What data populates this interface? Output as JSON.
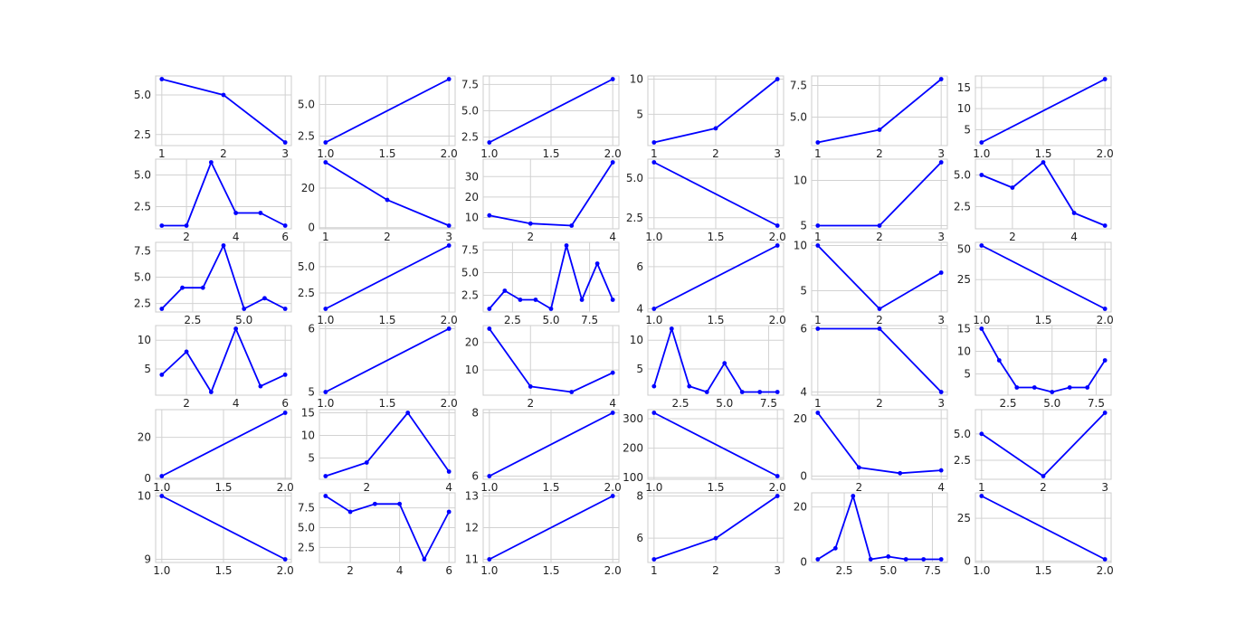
{
  "figure": {
    "style": "whitegrid",
    "grid": true,
    "line_color": "#0000ff",
    "marker": "dot"
  },
  "chart_data": [
    {
      "type": "line",
      "x": [
        1,
        2,
        3
      ],
      "y": [
        6,
        5,
        2
      ],
      "xlim": [
        0.9,
        3.1
      ],
      "ylim": [
        1.8,
        6.2
      ],
      "xticks": [
        1,
        2,
        3
      ],
      "xticklabels": [
        "1",
        "2",
        "3"
      ],
      "yticks": [
        2.5,
        5.0
      ],
      "yticklabels": [
        "2.5",
        "5.0"
      ]
    },
    {
      "type": "line",
      "x": [
        1,
        2
      ],
      "y": [
        2,
        7
      ],
      "xlim": [
        0.95,
        2.05
      ],
      "ylim": [
        1.75,
        7.25
      ],
      "xticks": [
        1.0,
        1.5,
        2.0
      ],
      "xticklabels": [
        "1.0",
        "1.5",
        "2.0"
      ],
      "yticks": [
        2.5,
        5.0
      ],
      "yticklabels": [
        "2.5",
        "5.0"
      ]
    },
    {
      "type": "line",
      "x": [
        1,
        2
      ],
      "y": [
        2,
        8
      ],
      "xlim": [
        0.95,
        2.05
      ],
      "ylim": [
        1.7,
        8.3
      ],
      "xticks": [
        1.0,
        1.5,
        2.0
      ],
      "xticklabels": [
        "1.0",
        "1.5",
        "2.0"
      ],
      "yticks": [
        2.5,
        5.0,
        7.5
      ],
      "yticklabels": [
        "2.5",
        "5.0",
        "7.5"
      ]
    },
    {
      "type": "line",
      "x": [
        1,
        2,
        3
      ],
      "y": [
        1,
        3,
        10
      ],
      "xlim": [
        0.9,
        3.1
      ],
      "ylim": [
        0.55,
        10.45
      ],
      "xticks": [
        1,
        2,
        3
      ],
      "xticklabels": [
        "1",
        "2",
        "3"
      ],
      "yticks": [
        5,
        10
      ],
      "yticklabels": [
        "5",
        "10"
      ]
    },
    {
      "type": "line",
      "x": [
        1,
        2,
        3
      ],
      "y": [
        3,
        4,
        8
      ],
      "xlim": [
        0.9,
        3.1
      ],
      "ylim": [
        2.75,
        8.25
      ],
      "xticks": [
        1,
        2,
        3
      ],
      "xticklabels": [
        "1",
        "2",
        "3"
      ],
      "yticks": [
        5.0,
        7.5
      ],
      "yticklabels": [
        "5.0",
        "7.5"
      ]
    },
    {
      "type": "line",
      "x": [
        1,
        2
      ],
      "y": [
        2,
        17
      ],
      "xlim": [
        0.95,
        2.05
      ],
      "ylim": [
        1.25,
        17.75
      ],
      "xticks": [
        1.0,
        1.5,
        2.0
      ],
      "xticklabels": [
        "1.0",
        "1.5",
        "2.0"
      ],
      "yticks": [
        5,
        10,
        15
      ],
      "yticklabels": [
        "5",
        "10",
        "15"
      ]
    },
    {
      "type": "line",
      "x": [
        1,
        2,
        3,
        4,
        5,
        6
      ],
      "y": [
        1,
        1,
        6,
        2,
        2,
        1
      ],
      "xlim": [
        0.75,
        6.25
      ],
      "ylim": [
        0.75,
        6.25
      ],
      "xticks": [
        2,
        4,
        6
      ],
      "xticklabels": [
        "2",
        "4",
        "6"
      ],
      "yticks": [
        2.5,
        5.0
      ],
      "yticklabels": [
        "2.5",
        "5.0"
      ]
    },
    {
      "type": "line",
      "x": [
        1,
        2,
        3
      ],
      "y": [
        33,
        14,
        1
      ],
      "xlim": [
        0.9,
        3.1
      ],
      "ylim": [
        -0.6,
        34.6
      ],
      "xticks": [
        1,
        2,
        3
      ],
      "xticklabels": [
        "1",
        "2",
        "3"
      ],
      "yticks": [
        0,
        20
      ],
      "yticklabels": [
        "0",
        "20"
      ]
    },
    {
      "type": "line",
      "x": [
        1,
        2,
        3,
        4
      ],
      "y": [
        11,
        7,
        6,
        37
      ],
      "xlim": [
        0.85,
        4.15
      ],
      "ylim": [
        4.45,
        38.55
      ],
      "xticks": [
        2,
        4
      ],
      "xticklabels": [
        "2",
        "4"
      ],
      "yticks": [
        10,
        20,
        30
      ],
      "yticklabels": [
        "10",
        "20",
        "30"
      ]
    },
    {
      "type": "line",
      "x": [
        1,
        2
      ],
      "y": [
        6,
        2
      ],
      "xlim": [
        0.95,
        2.05
      ],
      "ylim": [
        1.8,
        6.2
      ],
      "xticks": [
        1.0,
        1.5,
        2.0
      ],
      "xticklabels": [
        "1.0",
        "1.5",
        "2.0"
      ],
      "yticks": [
        2.5,
        5.0
      ],
      "yticklabels": [
        "2.5",
        "5.0"
      ]
    },
    {
      "type": "line",
      "x": [
        1,
        2,
        3
      ],
      "y": [
        5,
        5,
        12
      ],
      "xlim": [
        0.9,
        3.1
      ],
      "ylim": [
        4.65,
        12.35
      ],
      "xticks": [
        1,
        2,
        3
      ],
      "xticklabels": [
        "1",
        "2",
        "3"
      ],
      "yticks": [
        5,
        10
      ],
      "yticklabels": [
        "5",
        "10"
      ]
    },
    {
      "type": "line",
      "x": [
        1,
        2,
        3,
        4,
        5
      ],
      "y": [
        5,
        4,
        6,
        2,
        1
      ],
      "xlim": [
        0.8,
        5.2
      ],
      "ylim": [
        0.75,
        6.25
      ],
      "xticks": [
        2,
        4
      ],
      "xticklabels": [
        "2",
        "4"
      ],
      "yticks": [
        2.5,
        5.0
      ],
      "yticklabels": [
        "2.5",
        "5.0"
      ]
    },
    {
      "type": "line",
      "x": [
        1,
        2,
        3,
        4,
        5,
        6,
        7
      ],
      "y": [
        2,
        4,
        4,
        8,
        2,
        3,
        2
      ],
      "xlim": [
        0.7,
        7.3
      ],
      "ylim": [
        1.7,
        8.3
      ],
      "xticks": [
        2.5,
        5.0
      ],
      "xticklabels": [
        "2.5",
        "5.0"
      ],
      "yticks": [
        2.5,
        5.0,
        7.5
      ],
      "yticklabels": [
        "2.5",
        "5.0",
        "7.5"
      ]
    },
    {
      "type": "line",
      "x": [
        1,
        2
      ],
      "y": [
        1,
        7
      ],
      "xlim": [
        0.95,
        2.05
      ],
      "ylim": [
        0.7,
        7.3
      ],
      "xticks": [
        1.0,
        1.5,
        2.0
      ],
      "xticklabels": [
        "1.0",
        "1.5",
        "2.0"
      ],
      "yticks": [
        2.5,
        5.0
      ],
      "yticklabels": [
        "2.5",
        "5.0"
      ]
    },
    {
      "type": "line",
      "x": [
        1,
        2,
        3,
        4,
        5,
        6,
        7,
        8,
        9
      ],
      "y": [
        1,
        3,
        2,
        2,
        1,
        8,
        2,
        6,
        2
      ],
      "xlim": [
        0.6,
        9.4
      ],
      "ylim": [
        0.65,
        8.35
      ],
      "xticks": [
        2.5,
        5.0,
        7.5
      ],
      "xticklabels": [
        "2.5",
        "5.0",
        "7.5"
      ],
      "yticks": [
        2.5,
        5.0,
        7.5
      ],
      "yticklabels": [
        "2.5",
        "5.0",
        "7.5"
      ]
    },
    {
      "type": "line",
      "x": [
        1,
        2
      ],
      "y": [
        4,
        7
      ],
      "xlim": [
        0.95,
        2.05
      ],
      "ylim": [
        3.85,
        7.15
      ],
      "xticks": [
        1.0,
        1.5,
        2.0
      ],
      "xticklabels": [
        "1.0",
        "1.5",
        "2.0"
      ],
      "yticks": [
        4,
        6
      ],
      "yticklabels": [
        "4",
        "6"
      ]
    },
    {
      "type": "line",
      "x": [
        1,
        2,
        3
      ],
      "y": [
        10,
        3,
        7
      ],
      "xlim": [
        0.9,
        3.1
      ],
      "ylim": [
        2.65,
        10.35
      ],
      "xticks": [
        1,
        2,
        3
      ],
      "xticklabels": [
        "1",
        "2",
        "3"
      ],
      "yticks": [
        5,
        10
      ],
      "yticklabels": [
        "5",
        "10"
      ]
    },
    {
      "type": "line",
      "x": [
        1,
        2
      ],
      "y": [
        53,
        1
      ],
      "xlim": [
        0.95,
        2.05
      ],
      "ylim": [
        -1.6,
        55.6
      ],
      "xticks": [
        1.0,
        1.5,
        2.0
      ],
      "xticklabels": [
        "1.0",
        "1.5",
        "2.0"
      ],
      "yticks": [
        25,
        50
      ],
      "yticklabels": [
        "25",
        "50"
      ]
    },
    {
      "type": "line",
      "x": [
        1,
        2,
        3,
        4,
        5,
        6
      ],
      "y": [
        4,
        8,
        1,
        12,
        2,
        4
      ],
      "xlim": [
        0.75,
        6.25
      ],
      "ylim": [
        0.45,
        12.55
      ],
      "xticks": [
        2,
        4,
        6
      ],
      "xticklabels": [
        "2",
        "4",
        "6"
      ],
      "yticks": [
        5,
        10
      ],
      "yticklabels": [
        "5",
        "10"
      ]
    },
    {
      "type": "line",
      "x": [
        1,
        2
      ],
      "y": [
        5,
        6
      ],
      "xlim": [
        0.95,
        2.05
      ],
      "ylim": [
        4.95,
        6.05
      ],
      "xticks": [
        1.0,
        1.5,
        2.0
      ],
      "xticklabels": [
        "1.0",
        "1.5",
        "2.0"
      ],
      "yticks": [
        5,
        6
      ],
      "yticklabels": [
        "5",
        "6"
      ]
    },
    {
      "type": "line",
      "x": [
        1,
        2,
        3,
        4
      ],
      "y": [
        25,
        4,
        2,
        9
      ],
      "xlim": [
        0.85,
        4.15
      ],
      "ylim": [
        0.85,
        26.15
      ],
      "xticks": [
        2,
        4
      ],
      "xticklabels": [
        "2",
        "4"
      ],
      "yticks": [
        10,
        20
      ],
      "yticklabels": [
        "10",
        "20"
      ]
    },
    {
      "type": "line",
      "x": [
        1,
        2,
        3,
        4,
        5,
        6,
        7,
        8
      ],
      "y": [
        2,
        12,
        2,
        1,
        6,
        1,
        1,
        1
      ],
      "xlim": [
        0.65,
        8.35
      ],
      "ylim": [
        0.45,
        12.55
      ],
      "xticks": [
        2.5,
        5.0,
        7.5
      ],
      "xticklabels": [
        "2.5",
        "5.0",
        "7.5"
      ],
      "yticks": [
        5,
        10
      ],
      "yticklabels": [
        "5",
        "10"
      ]
    },
    {
      "type": "line",
      "x": [
        1,
        2,
        3
      ],
      "y": [
        6,
        6,
        4
      ],
      "xlim": [
        0.9,
        3.1
      ],
      "ylim": [
        3.9,
        6.1
      ],
      "xticks": [
        1,
        2,
        3
      ],
      "xticklabels": [
        "1",
        "2",
        "3"
      ],
      "yticks": [
        4,
        6
      ],
      "yticklabels": [
        "4",
        "6"
      ]
    },
    {
      "type": "line",
      "x": [
        1,
        2,
        3,
        4,
        5,
        6,
        7,
        8
      ],
      "y": [
        15,
        8,
        2,
        2,
        1,
        2,
        2,
        8
      ],
      "xlim": [
        0.65,
        8.35
      ],
      "ylim": [
        0.3,
        15.7
      ],
      "xticks": [
        2.5,
        5.0,
        7.5
      ],
      "xticklabels": [
        "2.5",
        "5.0",
        "7.5"
      ],
      "yticks": [
        5,
        10,
        15
      ],
      "yticklabels": [
        "5",
        "10",
        "15"
      ]
    },
    {
      "type": "line",
      "x": [
        1,
        2
      ],
      "y": [
        1,
        32
      ],
      "xlim": [
        0.95,
        2.05
      ],
      "ylim": [
        -0.55,
        33.55
      ],
      "xticks": [
        1.0,
        1.5,
        2.0
      ],
      "xticklabels": [
        "1.0",
        "1.5",
        "2.0"
      ],
      "yticks": [
        0,
        20
      ],
      "yticklabels": [
        "0",
        "20"
      ]
    },
    {
      "type": "line",
      "x": [
        1,
        2,
        3,
        4
      ],
      "y": [
        1,
        4,
        15,
        2
      ],
      "xlim": [
        0.85,
        4.15
      ],
      "ylim": [
        0.3,
        15.7
      ],
      "xticks": [
        2,
        4
      ],
      "xticklabels": [
        "2",
        "4"
      ],
      "yticks": [
        5,
        10,
        15
      ],
      "yticklabels": [
        "5",
        "10",
        "15"
      ]
    },
    {
      "type": "line",
      "x": [
        1,
        2
      ],
      "y": [
        6,
        8
      ],
      "xlim": [
        0.95,
        2.05
      ],
      "ylim": [
        5.9,
        8.1
      ],
      "xticks": [
        1.0,
        1.5,
        2.0
      ],
      "xticklabels": [
        "1.0",
        "1.5",
        "2.0"
      ],
      "yticks": [
        6,
        8
      ],
      "yticklabels": [
        "6",
        "8"
      ]
    },
    {
      "type": "line",
      "x": [
        1,
        2
      ],
      "y": [
        320,
        105
      ],
      "xlim": [
        0.95,
        2.05
      ],
      "ylim": [
        94.25,
        330.75
      ],
      "xticks": [
        1.0,
        1.5,
        2.0
      ],
      "xticklabels": [
        "1.0",
        "1.5",
        "2.0"
      ],
      "yticks": [
        100,
        200,
        300
      ],
      "yticklabels": [
        "100",
        "200",
        "300"
      ]
    },
    {
      "type": "line",
      "x": [
        1,
        2,
        3,
        4
      ],
      "y": [
        22,
        3,
        1,
        2
      ],
      "xlim": [
        0.85,
        4.15
      ],
      "ylim": [
        -1.1,
        23.1
      ],
      "xticks": [
        2,
        4
      ],
      "xticklabels": [
        "2",
        "4"
      ],
      "yticks": [
        0,
        20
      ],
      "yticklabels": [
        "0",
        "20"
      ]
    },
    {
      "type": "line",
      "x": [
        1,
        2,
        3
      ],
      "y": [
        5,
        1,
        7
      ],
      "xlim": [
        0.9,
        3.1
      ],
      "ylim": [
        0.7,
        7.3
      ],
      "xticks": [
        1,
        2,
        3
      ],
      "xticklabels": [
        "1",
        "2",
        "3"
      ],
      "yticks": [
        2.5,
        5.0
      ],
      "yticklabels": [
        "2.5",
        "5.0"
      ]
    },
    {
      "type": "line",
      "x": [
        1,
        2
      ],
      "y": [
        10,
        9
      ],
      "xlim": [
        0.95,
        2.05
      ],
      "ylim": [
        8.95,
        10.05
      ],
      "xticks": [
        1.0,
        1.5,
        2.0
      ],
      "xticklabels": [
        "1.0",
        "1.5",
        "2.0"
      ],
      "yticks": [
        9,
        10
      ],
      "yticklabels": [
        "9",
        "10"
      ]
    },
    {
      "type": "line",
      "x": [
        1,
        2,
        3,
        4,
        5,
        6
      ],
      "y": [
        9,
        7,
        8,
        8,
        1,
        7
      ],
      "xlim": [
        0.75,
        6.25
      ],
      "ylim": [
        0.6,
        9.4
      ],
      "xticks": [
        2,
        4,
        6
      ],
      "xticklabels": [
        "2",
        "4",
        "6"
      ],
      "yticks": [
        2.5,
        5.0,
        7.5
      ],
      "yticklabels": [
        "2.5",
        "5.0",
        "7.5"
      ]
    },
    {
      "type": "line",
      "x": [
        1,
        2
      ],
      "y": [
        11,
        13
      ],
      "xlim": [
        0.95,
        2.05
      ],
      "ylim": [
        10.9,
        13.1
      ],
      "xticks": [
        1.0,
        1.5,
        2.0
      ],
      "xticklabels": [
        "1.0",
        "1.5",
        "2.0"
      ],
      "yticks": [
        11,
        12,
        13
      ],
      "yticklabels": [
        "11",
        "12",
        "13"
      ]
    },
    {
      "type": "line",
      "x": [
        1,
        2,
        3
      ],
      "y": [
        5,
        6,
        8
      ],
      "xlim": [
        0.9,
        3.1
      ],
      "ylim": [
        4.85,
        8.15
      ],
      "xticks": [
        1,
        2,
        3
      ],
      "xticklabels": [
        "1",
        "2",
        "3"
      ],
      "yticks": [
        6,
        8
      ],
      "yticklabels": [
        "6",
        "8"
      ]
    },
    {
      "type": "line",
      "x": [
        1,
        2,
        3,
        4,
        5,
        6,
        7,
        8
      ],
      "y": [
        1,
        5,
        24,
        1,
        2,
        1,
        1,
        1
      ],
      "xlim": [
        0.65,
        8.35
      ],
      "ylim": [
        -0.15,
        25.15
      ],
      "xticks": [
        2.5,
        5.0,
        7.5
      ],
      "xticklabels": [
        "2.5",
        "5.0",
        "7.5"
      ],
      "yticks": [
        0,
        20
      ],
      "yticklabels": [
        "0",
        "20"
      ]
    },
    {
      "type": "line",
      "x": [
        1,
        2
      ],
      "y": [
        38,
        1
      ],
      "xlim": [
        0.95,
        2.05
      ],
      "ylim": [
        -0.85,
        39.85
      ],
      "xticks": [
        1.0,
        1.5,
        2.0
      ],
      "xticklabels": [
        "1.0",
        "1.5",
        "2.0"
      ],
      "yticks": [
        0,
        25
      ],
      "yticklabels": [
        "0",
        "25"
      ]
    }
  ]
}
